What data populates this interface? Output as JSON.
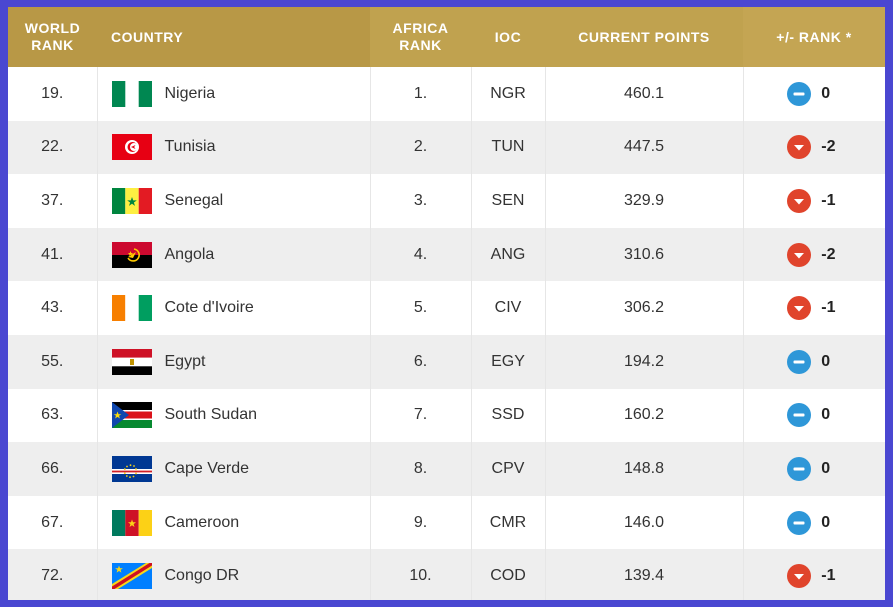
{
  "headers": {
    "world_rank": [
      "WORLD",
      "RANK"
    ],
    "country": "COUNTRY",
    "africa_rank": [
      "AFRICA",
      "RANK"
    ],
    "ioc": "IOC",
    "current_points": "CURRENT POINTS",
    "rank_change": "+/- RANK *"
  },
  "colors": {
    "header_gold": "#c0a24f",
    "border_blue": "#4a47d1",
    "same_blue": "#2e97d8",
    "down_red": "#e0442c"
  },
  "rows": [
    {
      "world_rank": "19.",
      "country": "Nigeria",
      "flag": "nigeria-flag",
      "africa_rank": "1.",
      "ioc": "NGR",
      "points": "460.1",
      "change_icon": "minus-circle-icon",
      "change": "0"
    },
    {
      "world_rank": "22.",
      "country": "Tunisia",
      "flag": "tunisia-flag",
      "africa_rank": "2.",
      "ioc": "TUN",
      "points": "447.5",
      "change_icon": "arrow-down-circle-icon",
      "change": "-2"
    },
    {
      "world_rank": "37.",
      "country": "Senegal",
      "flag": "senegal-flag",
      "africa_rank": "3.",
      "ioc": "SEN",
      "points": "329.9",
      "change_icon": "arrow-down-circle-icon",
      "change": "-1"
    },
    {
      "world_rank": "41.",
      "country": "Angola",
      "flag": "angola-flag",
      "africa_rank": "4.",
      "ioc": "ANG",
      "points": "310.6",
      "change_icon": "arrow-down-circle-icon",
      "change": "-2"
    },
    {
      "world_rank": "43.",
      "country": "Cote d'Ivoire",
      "flag": "cote-divoire-flag",
      "africa_rank": "5.",
      "ioc": "CIV",
      "points": "306.2",
      "change_icon": "arrow-down-circle-icon",
      "change": "-1"
    },
    {
      "world_rank": "55.",
      "country": "Egypt",
      "flag": "egypt-flag",
      "africa_rank": "6.",
      "ioc": "EGY",
      "points": "194.2",
      "change_icon": "minus-circle-icon",
      "change": "0"
    },
    {
      "world_rank": "63.",
      "country": "South Sudan",
      "flag": "south-sudan-flag",
      "africa_rank": "7.",
      "ioc": "SSD",
      "points": "160.2",
      "change_icon": "minus-circle-icon",
      "change": "0"
    },
    {
      "world_rank": "66.",
      "country": "Cape Verde",
      "flag": "cape-verde-flag",
      "africa_rank": "8.",
      "ioc": "CPV",
      "points": "148.8",
      "change_icon": "minus-circle-icon",
      "change": "0"
    },
    {
      "world_rank": "67.",
      "country": "Cameroon",
      "flag": "cameroon-flag",
      "africa_rank": "9.",
      "ioc": "CMR",
      "points": "146.0",
      "change_icon": "minus-circle-icon",
      "change": "0"
    },
    {
      "world_rank": "72.",
      "country": "Congo DR",
      "flag": "congo-dr-flag",
      "africa_rank": "10.",
      "ioc": "COD",
      "points": "139.4",
      "change_icon": "arrow-down-circle-icon",
      "change": "-1"
    }
  ]
}
